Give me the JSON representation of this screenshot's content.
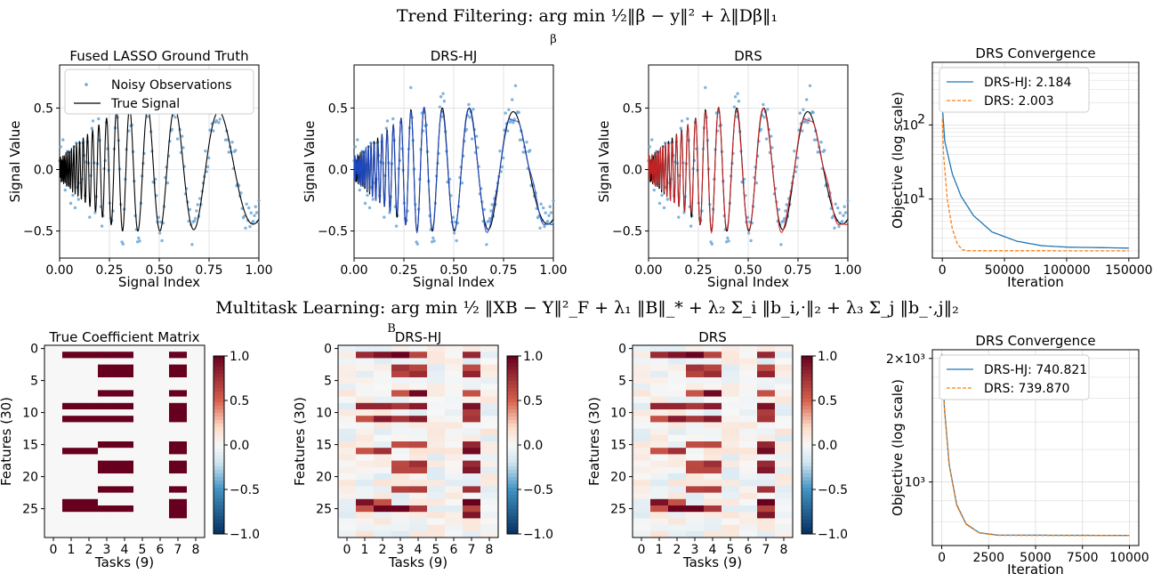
{
  "figure": {
    "row1_title": "Trend Filtering: arg min ½‖β − y‖² + λ‖Dβ‖₁",
    "row1_title_sub": "β",
    "row2_title": "Multitask Learning: arg min ½ ‖XB − Y‖²_F + λ₁ ‖B‖_* + λ₂ Σ_i ‖b_i,·‖₂ + λ₃ Σ_j ‖b_·,j‖₂",
    "row2_title_sub": "B"
  },
  "colors": {
    "truth": "#000000",
    "observations": "#6aa7d8",
    "drs_hj": "#1f4fd1",
    "drs": "#d62728",
    "conv_hj": "#1f77b4",
    "conv_drs": "#ff7f0e",
    "heat_pos": "#67001f",
    "heat_neg": "#053061"
  },
  "chart_data": [
    {
      "id": "tf-truth",
      "type": "line",
      "title": "Fused LASSO Ground Truth",
      "xlabel": "Signal Index",
      "ylabel": "Signal Value",
      "xlim": [
        0,
        1
      ],
      "ylim": [
        -0.72,
        0.85
      ],
      "xticks": [
        "0.00",
        "0.25",
        "0.50",
        "0.75",
        "1.00"
      ],
      "yticks": [
        "−0.5",
        "0.0",
        "0.5"
      ],
      "grid": true,
      "legend": "upper-right",
      "series": [
        {
          "name": "Noisy Observations",
          "kind": "scatter"
        },
        {
          "name": "True Signal",
          "kind": "line"
        }
      ]
    },
    {
      "id": "tf-hj",
      "type": "line",
      "title": "DRS-HJ",
      "xlabel": "Signal Index",
      "ylabel": "Signal Value",
      "xlim": [
        0,
        1
      ],
      "ylim": [
        -0.72,
        0.85
      ],
      "xticks": [
        "0.00",
        "0.25",
        "0.50",
        "0.75",
        "1.00"
      ],
      "yticks": [
        "−0.5",
        "0.0",
        "0.5"
      ],
      "grid": true
    },
    {
      "id": "tf-drs",
      "type": "line",
      "title": "DRS",
      "xlabel": "Signal Index",
      "ylabel": "Signal Value",
      "xlim": [
        0,
        1
      ],
      "ylim": [
        -0.72,
        0.85
      ],
      "xticks": [
        "0.00",
        "0.25",
        "0.50",
        "0.75",
        "1.00"
      ],
      "yticks": [
        "−0.5",
        "0.0",
        "0.5"
      ],
      "grid": true
    },
    {
      "id": "tf-conv",
      "type": "line",
      "title": "DRS Convergence",
      "xlabel": "Iteration",
      "ylabel": "Objective (log scale)",
      "yscale": "log",
      "xlim": [
        -8000,
        158000
      ],
      "ylim": [
        1.6,
        700
      ],
      "xticks": [
        "0",
        "50000",
        "100000",
        "150000"
      ],
      "grid": true,
      "legend": "upper-right",
      "series": [
        {
          "name": "DRS-HJ: 2.184",
          "x": [
            0,
            2000,
            8000,
            15000,
            25000,
            40000,
            60000,
            80000,
            100000,
            150000
          ],
          "y": [
            180,
            60,
            22,
            11,
            6,
            3.6,
            2.7,
            2.35,
            2.25,
            2.18
          ]
        },
        {
          "name": "DRS: 2.003",
          "x": [
            0,
            1000,
            4000,
            8000,
            12000,
            16000,
            20000,
            150000
          ],
          "y": [
            120,
            40,
            10,
            4,
            2.5,
            2.08,
            2.01,
            2.0
          ]
        }
      ]
    },
    {
      "id": "mt-truth",
      "type": "heatmap",
      "title": "True Coefficient Matrix",
      "xlabel": "Tasks (9)",
      "ylabel": "Features (30)",
      "xticks": [
        "0",
        "1",
        "2",
        "3",
        "4",
        "5",
        "6",
        "7",
        "8"
      ],
      "yticks": [
        "0",
        "5",
        "10",
        "15",
        "20",
        "25"
      ],
      "colorbar_ticks": [
        "1.0",
        "0.5",
        "0.0",
        "−0.5",
        "−1.0"
      ],
      "active_cells": [
        [
          1,
          1
        ],
        [
          1,
          2
        ],
        [
          1,
          3
        ],
        [
          1,
          4
        ],
        [
          1,
          7
        ],
        [
          3,
          3
        ],
        [
          3,
          4
        ],
        [
          3,
          7
        ],
        [
          4,
          3
        ],
        [
          4,
          4
        ],
        [
          4,
          7
        ],
        [
          7,
          3
        ],
        [
          7,
          4
        ],
        [
          7,
          7
        ],
        [
          9,
          1
        ],
        [
          9,
          2
        ],
        [
          9,
          3
        ],
        [
          9,
          4
        ],
        [
          9,
          7
        ],
        [
          10,
          7
        ],
        [
          11,
          1
        ],
        [
          11,
          2
        ],
        [
          11,
          3
        ],
        [
          11,
          4
        ],
        [
          11,
          7
        ],
        [
          15,
          3
        ],
        [
          15,
          4
        ],
        [
          15,
          7
        ],
        [
          16,
          1
        ],
        [
          16,
          2
        ],
        [
          16,
          7
        ],
        [
          18,
          3
        ],
        [
          18,
          4
        ],
        [
          18,
          7
        ],
        [
          19,
          3
        ],
        [
          19,
          4
        ],
        [
          19,
          7
        ],
        [
          22,
          3
        ],
        [
          22,
          4
        ],
        [
          22,
          7
        ],
        [
          24,
          1
        ],
        [
          24,
          2
        ],
        [
          24,
          7
        ],
        [
          25,
          1
        ],
        [
          25,
          2
        ],
        [
          25,
          3
        ],
        [
          25,
          4
        ],
        [
          25,
          7
        ],
        [
          26,
          7
        ]
      ]
    },
    {
      "id": "mt-hj",
      "type": "heatmap",
      "title": "DRS-HJ",
      "xlabel": "Tasks (9)",
      "ylabel": "Features (30)",
      "xticks": [
        "0",
        "1",
        "2",
        "3",
        "4",
        "5",
        "6",
        "7",
        "8"
      ],
      "yticks": [
        "0",
        "5",
        "10",
        "15",
        "20",
        "25"
      ],
      "colorbar_ticks": [
        "1.0",
        "0.5",
        "0.0",
        "−0.5",
        "−1.0"
      ]
    },
    {
      "id": "mt-drs",
      "type": "heatmap",
      "title": "DRS",
      "xlabel": "Tasks (9)",
      "ylabel": "Features (30)",
      "xticks": [
        "0",
        "1",
        "2",
        "3",
        "4",
        "5",
        "6",
        "7",
        "8"
      ],
      "yticks": [
        "0",
        "5",
        "10",
        "15",
        "20",
        "25"
      ],
      "colorbar_ticks": [
        "1.0",
        "0.5",
        "0.0",
        "−0.5",
        "−1.0"
      ]
    },
    {
      "id": "mt-conv",
      "type": "line",
      "title": "DRS Convergence",
      "xlabel": "Iteration",
      "ylabel": "Objective (log scale)",
      "yscale": "log",
      "xlim": [
        -500,
        10500
      ],
      "ylim": [
        700,
        2100
      ],
      "xticks": [
        "0",
        "2500",
        "5000",
        "7500",
        "10000"
      ],
      "yticks": [
        "10³"
      ],
      "ytick_small": "2×10³",
      "grid": true,
      "legend": "upper-right",
      "series": [
        {
          "name": "DRS-HJ: 740.821",
          "x": [
            0,
            150,
            400,
            800,
            1300,
            2000,
            3000,
            10000
          ],
          "y": [
            2050,
            1500,
            1100,
            880,
            790,
            752,
            742,
            740.8
          ]
        },
        {
          "name": "DRS: 739.870",
          "x": [
            0,
            150,
            400,
            800,
            1300,
            2000,
            3000,
            10000
          ],
          "y": [
            2050,
            1490,
            1095,
            875,
            788,
            751,
            741,
            739.9
          ]
        }
      ]
    }
  ]
}
